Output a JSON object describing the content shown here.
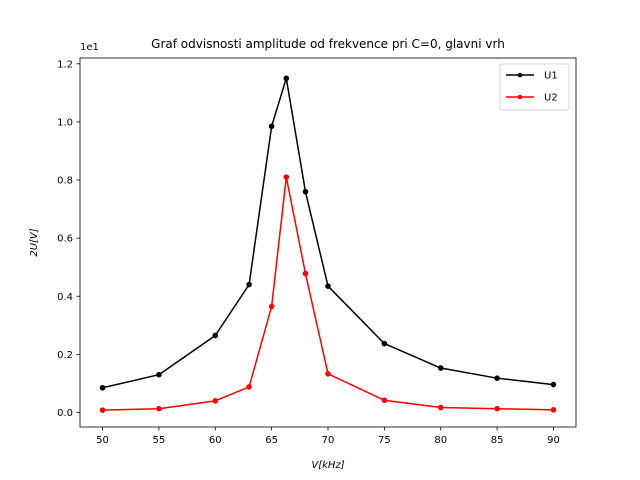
{
  "chart_data": {
    "type": "line",
    "title": "Graf odvisnosti amplitude od frekvence pri C=0, glavni vrh",
    "xlabel": "V[kHz]",
    "ylabel": "2U[V]",
    "offset_text": "1e1",
    "xlim": [
      48,
      92
    ],
    "ylim": [
      -0.05,
      1.22
    ],
    "x_ticks": [
      50,
      55,
      60,
      65,
      70,
      75,
      80,
      85,
      90
    ],
    "x_tick_labels": [
      "50",
      "55",
      "60",
      "65",
      "70",
      "75",
      "80",
      "85",
      "90"
    ],
    "y_ticks": [
      0.0,
      0.2,
      0.4,
      0.6,
      0.8,
      1.0,
      1.2
    ],
    "y_tick_labels": [
      "0.0",
      "0.2",
      "0.4",
      "0.6",
      "0.8",
      "1.0",
      "1.2"
    ],
    "grid": false,
    "legend_position": "top-right",
    "series": [
      {
        "name": "U1",
        "color": "#000000",
        "x": [
          50,
          55,
          60,
          63,
          65,
          66.3,
          68,
          70,
          75,
          80,
          85,
          90
        ],
        "y": [
          0.085,
          0.13,
          0.265,
          0.44,
          0.985,
          1.15,
          0.76,
          0.435,
          0.237,
          0.153,
          0.118,
          0.096
        ]
      },
      {
        "name": "U2",
        "color": "#ff0000",
        "x": [
          50,
          55,
          60,
          63,
          65,
          66.3,
          68,
          70,
          75,
          80,
          85,
          90
        ],
        "y": [
          0.008,
          0.013,
          0.04,
          0.088,
          0.365,
          0.81,
          0.478,
          0.133,
          0.042,
          0.017,
          0.013,
          0.009
        ]
      }
    ]
  }
}
